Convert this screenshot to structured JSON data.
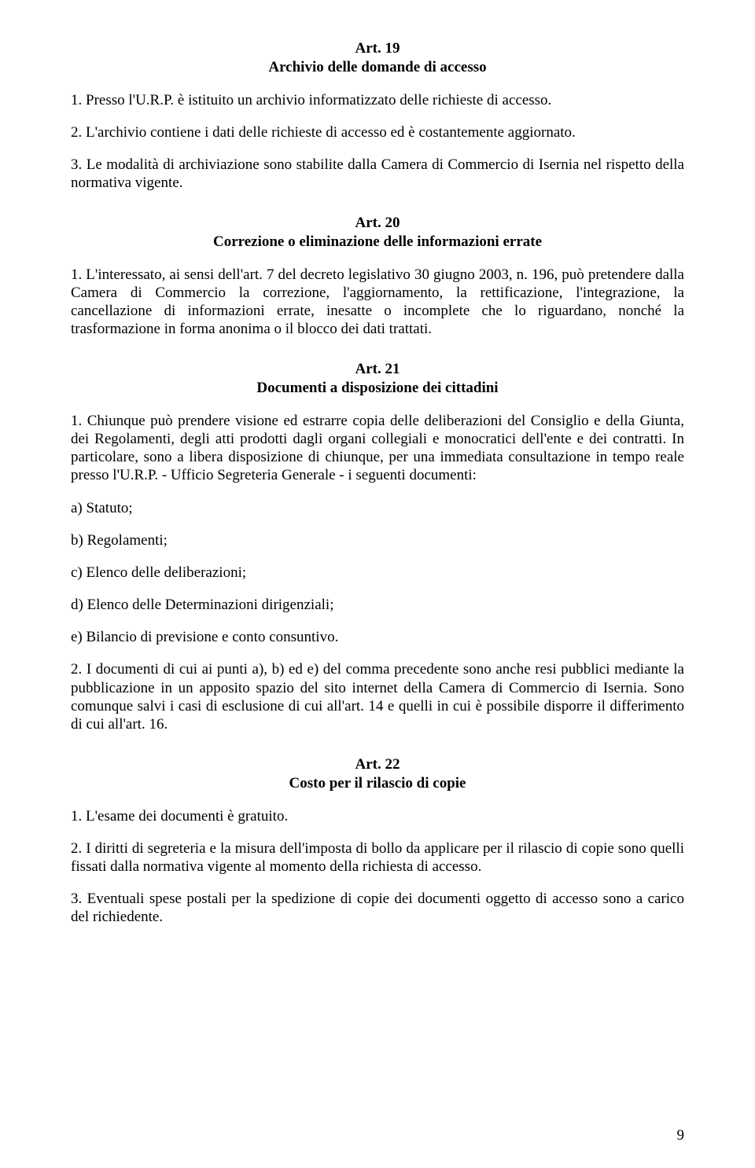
{
  "art19": {
    "title_line1": "Art. 19",
    "title_line2": "Archivio delle domande di accesso",
    "p1": "1. Presso l'U.R.P. è istituito un archivio informatizzato delle richieste di accesso.",
    "p2": "2. L'archivio contiene i dati delle richieste di accesso ed è costantemente aggiornato.",
    "p3": "3. Le modalità di archiviazione sono stabilite dalla Camera di Commercio di Isernia nel rispetto della normativa vigente."
  },
  "art20": {
    "title_line1": "Art. 20",
    "title_line2": "Correzione o eliminazione delle informazioni errate",
    "p1": "1. L'interessato, ai sensi dell'art. 7 del decreto legislativo 30 giugno 2003, n. 196, può pretendere dalla Camera di Commercio la correzione, l'aggiornamento, la rettificazione, l'integrazione, la cancellazione di informazioni errate, inesatte o incomplete che lo riguardano, nonché la trasformazione in forma anonima o il blocco dei dati trattati."
  },
  "art21": {
    "title_line1": "Art. 21",
    "title_line2": "Documenti a disposizione dei cittadini",
    "p1": "1. Chiunque può prendere visione ed estrarre copia delle deliberazioni del Consiglio e della Giunta, dei Regolamenti, degli atti prodotti dagli organi collegiali e monocratici dell'ente e dei contratti. In particolare, sono a libera disposizione di chiunque, per una immediata consultazione in tempo reale presso  l'U.R.P.  -  Ufficio Segreteria Generale -   i seguenti documenti:",
    "a": "a) Statuto;",
    "b": "b) Regolamenti;",
    "c": "c) Elenco delle deliberazioni;",
    "d": "d) Elenco delle  Determinazioni dirigenziali;",
    "e": "e) Bilancio di previsione e conto consuntivo.",
    "p2": "2. I documenti di cui ai punti a), b) ed e) del comma precedente sono anche resi pubblici mediante la pubblicazione in un apposito spazio del sito internet della Camera di Commercio di Isernia. Sono comunque salvi i casi di esclusione di cui all'art. 14 e quelli in cui è possibile disporre il differimento di cui all'art. 16."
  },
  "art22": {
    "title_line1": "Art. 22",
    "title_line2": "Costo per il rilascio di copie",
    "p1": "1. L'esame dei documenti è gratuito.",
    "p2": "2. I diritti di segreteria e la misura dell'imposta di bollo da applicare per il rilascio di copie sono quelli fissati dalla normativa vigente al momento della richiesta di accesso.",
    "p3": "3. Eventuali spese postali per la spedizione di copie dei documenti oggetto di accesso sono a carico del richiedente."
  },
  "page_number": "9"
}
